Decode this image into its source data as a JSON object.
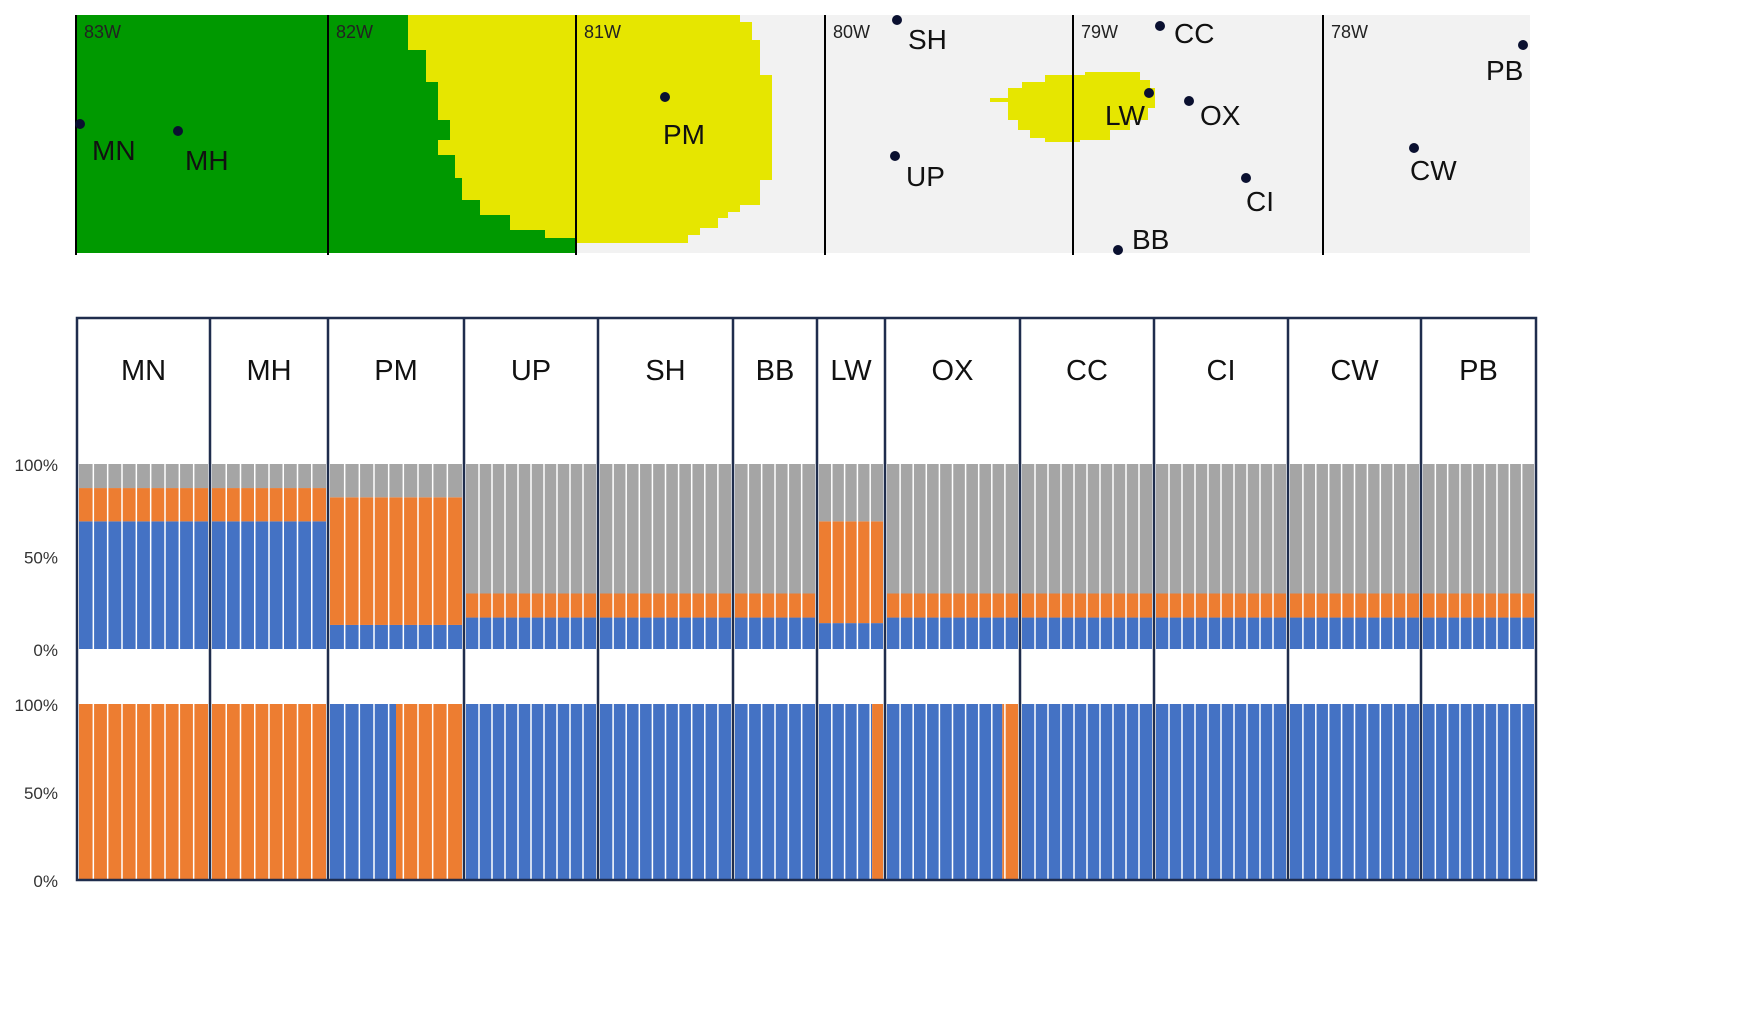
{
  "colors": {
    "map_green": "#009900",
    "map_yellow": "#e6e600",
    "map_gray": "#f2f2f2",
    "blue": "#4472c4",
    "orange": "#ed7d31",
    "gray": "#a5a5a5",
    "frame": "#1f2d4d"
  },
  "map": {
    "longitude_labels": [
      "83W",
      "82W",
      "81W",
      "80W",
      "79W",
      "78W"
    ],
    "sites": [
      {
        "id": "MN",
        "label": "MN"
      },
      {
        "id": "MH",
        "label": "MH"
      },
      {
        "id": "PM",
        "label": "PM"
      },
      {
        "id": "SH",
        "label": "SH"
      },
      {
        "id": "UP",
        "label": "UP"
      },
      {
        "id": "CC",
        "label": "CC"
      },
      {
        "id": "LW",
        "label": "LW"
      },
      {
        "id": "OX",
        "label": "OX"
      },
      {
        "id": "CI",
        "label": "CI"
      },
      {
        "id": "BB",
        "label": "BB"
      },
      {
        "id": "PB",
        "label": "PB"
      },
      {
        "id": "CW",
        "label": "CW"
      }
    ]
  },
  "chart_data": [
    {
      "type": "bar",
      "stacked": true,
      "categories": [
        "MN",
        "MH",
        "PM",
        "UP",
        "SH",
        "BB",
        "LW",
        "OX",
        "CC",
        "CI",
        "CW",
        "PB"
      ],
      "y_ticks": [
        "100%",
        "50%",
        "0%"
      ],
      "ylim": [
        0,
        100
      ],
      "series": [
        {
          "color": "blue",
          "values": [
            69,
            69,
            13,
            17,
            17,
            17,
            14,
            17,
            17,
            17,
            17,
            17
          ]
        },
        {
          "color": "orange",
          "values": [
            18,
            18,
            69,
            13,
            13,
            13,
            55,
            13,
            13,
            13,
            13,
            13
          ]
        },
        {
          "color": "gray",
          "values": [
            13,
            13,
            18,
            70,
            70,
            70,
            31,
            70,
            70,
            70,
            70,
            70
          ]
        }
      ]
    },
    {
      "type": "bar",
      "stacked": true,
      "categories": [
        "MN",
        "MH",
        "PM",
        "UP",
        "SH",
        "BB",
        "LW",
        "OX",
        "CC",
        "CI",
        "CW",
        "PB"
      ],
      "y_ticks": [
        "100%",
        "50%",
        "0%"
      ],
      "ylim": [
        0,
        100
      ],
      "series": [
        {
          "color": "blue",
          "values": [
            0,
            0,
            50,
            100,
            100,
            100,
            83,
            88,
            100,
            100,
            100,
            100
          ]
        },
        {
          "color": "orange",
          "values": [
            100,
            100,
            50,
            0,
            0,
            0,
            17,
            12,
            0,
            0,
            0,
            0
          ]
        }
      ]
    }
  ]
}
